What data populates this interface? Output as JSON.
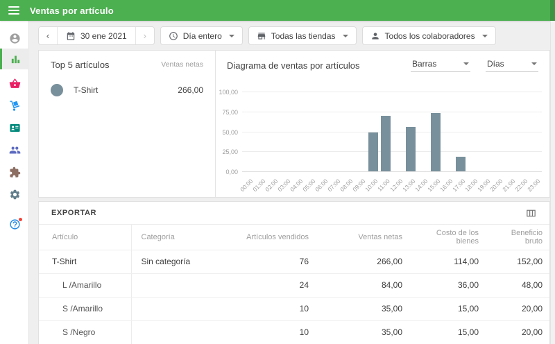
{
  "colors": {
    "primary": "#4caf50",
    "bar": "#78909c",
    "series_dot": "#78909c"
  },
  "appbar": {
    "title": "Ventas por artículo"
  },
  "sidebar": {
    "items": [
      {
        "name": "account"
      },
      {
        "name": "reports",
        "active": true
      },
      {
        "name": "items"
      },
      {
        "name": "inventory"
      },
      {
        "name": "employees"
      },
      {
        "name": "customers"
      },
      {
        "name": "integrations"
      },
      {
        "name": "settings"
      },
      {
        "name": "help",
        "badge": true
      }
    ]
  },
  "toolbar": {
    "date": {
      "prev": "‹",
      "value": "30 ene 2021",
      "next": "›"
    },
    "time_filter": "Día entero",
    "store_filter": "Todas las tiendas",
    "employee_filter": "Todos los colaboradores"
  },
  "top_items": {
    "title": "Top 5 artículos",
    "column": "Ventas netas",
    "items": [
      {
        "label": "T-Shirt",
        "value": "266,00"
      }
    ]
  },
  "chart": {
    "title": "Diagrama de ventas por artículos",
    "type_select": "Barras",
    "period_select": "Días"
  },
  "chart_data": {
    "type": "bar",
    "title": "Diagrama de ventas por artículos",
    "categories": [
      "00:00",
      "01:00",
      "02:00",
      "03:00",
      "04:00",
      "05:00",
      "06:00",
      "07:00",
      "08:00",
      "09:00",
      "10:00",
      "11:00",
      "12:00",
      "13:00",
      "14:00",
      "15:00",
      "16:00",
      "17:00",
      "18:00",
      "19:00",
      "20:00",
      "21:00",
      "22:00",
      "23:00"
    ],
    "values": [
      0,
      0,
      0,
      0,
      0,
      0,
      0,
      0,
      0,
      0,
      49,
      70,
      0,
      56,
      0,
      73,
      0,
      18,
      0,
      0,
      0,
      0,
      0,
      0
    ],
    "xlabel": "",
    "ylabel": "",
    "ylim": [
      0,
      100
    ],
    "yticks": [
      "0,00",
      "25,00",
      "50,00",
      "75,00",
      "100,00"
    ],
    "grid": true,
    "legend": false,
    "bar_color": "#78909c"
  },
  "export_section": {
    "export_label": "EXPORTAR"
  },
  "table": {
    "headers": [
      {
        "label": "Artículo",
        "align": "l"
      },
      {
        "label": "Categoría",
        "align": "l"
      },
      {
        "label": "Artículos vendidos",
        "align": "r"
      },
      {
        "label": "Ventas netas",
        "align": "r"
      },
      {
        "label": "Costo de los bienes",
        "align": "r"
      },
      {
        "label": "Beneficio bruto",
        "align": "r"
      }
    ],
    "rows": [
      {
        "article": "T-Shirt",
        "category": "Sin categoría",
        "sold": "76",
        "net": "266,00",
        "cost": "114,00",
        "profit": "152,00",
        "variant": false
      },
      {
        "article": "L /Amarillo",
        "category": "",
        "sold": "24",
        "net": "84,00",
        "cost": "36,00",
        "profit": "48,00",
        "variant": true
      },
      {
        "article": "S /Amarillo",
        "category": "",
        "sold": "10",
        "net": "35,00",
        "cost": "15,00",
        "profit": "20,00",
        "variant": true
      },
      {
        "article": "S /Negro",
        "category": "",
        "sold": "10",
        "net": "35,00",
        "cost": "15,00",
        "profit": "20,00",
        "variant": true
      }
    ]
  }
}
